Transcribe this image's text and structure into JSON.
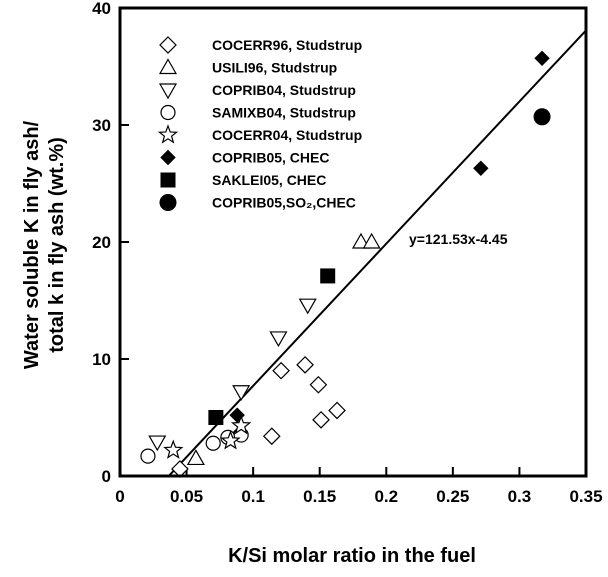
{
  "chart_data": {
    "type": "scatter",
    "title": "",
    "xlabel": "K/Si molar ratio in the fuel",
    "ylabel_lines": [
      "Water soluble K in fly ash/",
      "total k in fly ash (wt.%)"
    ],
    "xlim": [
      0,
      0.35
    ],
    "ylim": [
      0,
      40
    ],
    "xticks": [
      0,
      0.05,
      0.1,
      0.15,
      0.2,
      0.25,
      0.3,
      0.35
    ],
    "xtick_labels": [
      "0",
      "0.05",
      "0.1",
      "0.15",
      "0.2",
      "0.25",
      "0.3",
      "0.35"
    ],
    "yticks": [
      0,
      10,
      20,
      30,
      40
    ],
    "ytick_labels": [
      "0",
      "10",
      "20",
      "30",
      "40"
    ],
    "grid": false,
    "legend_position": "top-left",
    "series": [
      {
        "name": "COCERR96, Studstrup",
        "marker": "diamond-open",
        "points": [
          [
            0.045,
            0.6
          ],
          [
            0.09,
            3.6
          ],
          [
            0.114,
            3.4
          ],
          [
            0.121,
            9.0
          ],
          [
            0.139,
            9.5
          ],
          [
            0.149,
            7.8
          ],
          [
            0.151,
            4.8
          ],
          [
            0.163,
            5.6
          ]
        ]
      },
      {
        "name": "USILI96, Studstrup",
        "marker": "triangle-up-open",
        "points": [
          [
            0.057,
            1.5
          ],
          [
            0.181,
            20.0
          ],
          [
            0.189,
            20.0
          ]
        ]
      },
      {
        "name": "COPRIB04, Studstrup",
        "marker": "triangle-down-open",
        "points": [
          [
            0.028,
            2.9
          ],
          [
            0.091,
            7.2
          ],
          [
            0.119,
            11.8
          ],
          [
            0.141,
            14.6
          ]
        ]
      },
      {
        "name": "SAMIXB04, Studstrup",
        "marker": "circle-open",
        "points": [
          [
            0.021,
            1.7
          ],
          [
            0.07,
            2.8
          ],
          [
            0.081,
            3.3
          ],
          [
            0.091,
            3.5
          ]
        ]
      },
      {
        "name": "COCERR04, Studstrup",
        "marker": "star-open",
        "points": [
          [
            0.04,
            2.2
          ],
          [
            0.083,
            3.0
          ],
          [
            0.091,
            4.3
          ]
        ]
      },
      {
        "name": "COPRIB05, CHEC",
        "marker": "diamond-filled",
        "points": [
          [
            0.088,
            5.2
          ],
          [
            0.271,
            26.3
          ],
          [
            0.317,
            35.7
          ]
        ]
      },
      {
        "name": "SAKLEI05, CHEC",
        "marker": "square-filled",
        "points": [
          [
            0.072,
            5.0
          ],
          [
            0.156,
            17.1
          ]
        ]
      },
      {
        "name": "COPRIB05,SO₂,CHEC",
        "marker": "circle-filled",
        "points": [
          [
            0.317,
            30.7
          ]
        ]
      }
    ],
    "fit_line": {
      "slope": 121.53,
      "intercept": -4.45,
      "x_range": [
        0.0366,
        0.35
      ],
      "label": "y=121.53x-4.45"
    }
  }
}
